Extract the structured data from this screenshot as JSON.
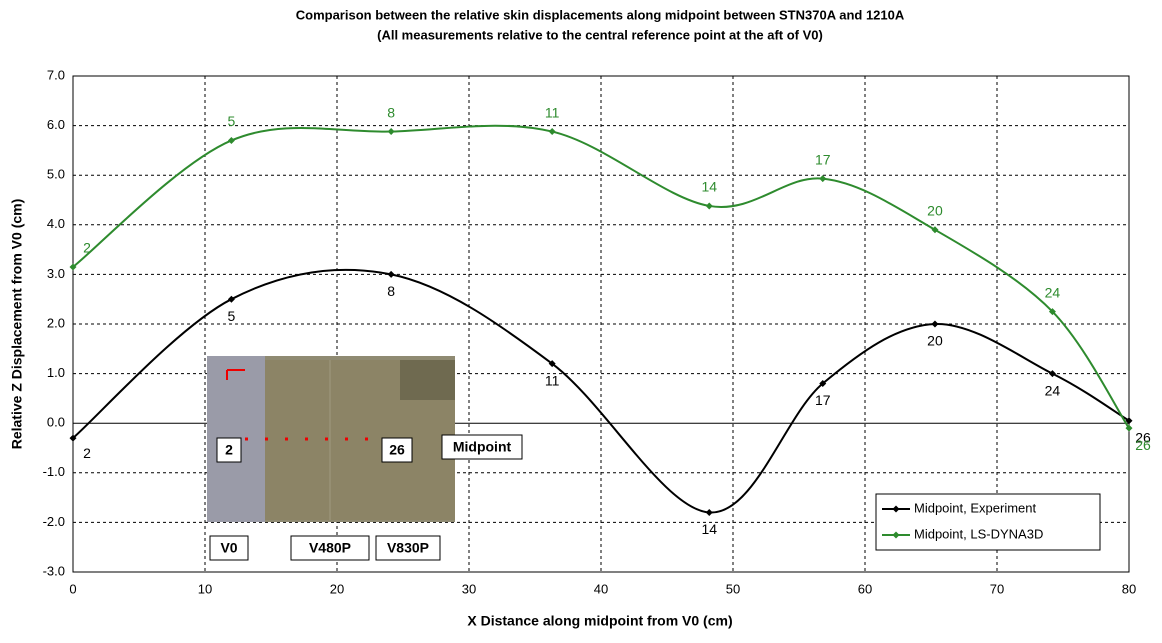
{
  "chart_data": {
    "type": "line",
    "title": "Comparison between the relative skin displacements along midpoint between STN370A and 1210A",
    "subtitle": "(All measurements relative to the central reference point at the aft of V0)",
    "x_label": "X Distance along midpoint from V0 (cm)",
    "y_label": "Relative Z Displacement from V0 (cm)",
    "xlim": [
      0,
      80
    ],
    "ylim": [
      -3,
      7
    ],
    "xticks": [
      0,
      10,
      20,
      30,
      40,
      50,
      60,
      70,
      80
    ],
    "yticks": [
      {
        "value": -3,
        "label": "-3.0"
      },
      {
        "value": -2,
        "label": "-2.0"
      },
      {
        "value": -1,
        "label": "-1.0"
      },
      {
        "value": 0,
        "label": "0.0"
      },
      {
        "value": 1,
        "label": "1.0"
      },
      {
        "value": 2,
        "label": "2.0"
      },
      {
        "value": 3,
        "label": "3.0"
      },
      {
        "value": 4,
        "label": "4.0"
      },
      {
        "value": 5,
        "label": "5.0"
      },
      {
        "value": 6,
        "label": "6.0"
      },
      {
        "value": 7,
        "label": "7.0"
      }
    ],
    "grid": true,
    "smooth": true,
    "legend": "lower right",
    "series": [
      {
        "name": "Midpoint, Experiment",
        "color": "#000000",
        "x": [
          0,
          12,
          24.1,
          36.3,
          48.2,
          56.8,
          65.3,
          74.2,
          80
        ],
        "values": [
          -0.3,
          2.5,
          3.0,
          1.2,
          -1.8,
          0.8,
          2.0,
          1.0,
          0.05
        ],
        "labels": [
          "2",
          "5",
          "8",
          "11",
          "14",
          "17",
          "20",
          "24",
          "26"
        ]
      },
      {
        "name": "Midpoint, LS-DYNA3D",
        "color": "#2e8b2e",
        "x": [
          0,
          12,
          24.1,
          36.3,
          48.2,
          56.8,
          65.3,
          74.2,
          80
        ],
        "values": [
          3.15,
          5.7,
          5.88,
          5.88,
          4.38,
          4.93,
          3.9,
          2.25,
          -0.1
        ],
        "labels": [
          "2",
          "5",
          "8",
          "11",
          "14",
          "17",
          "20",
          "24",
          "26"
        ]
      }
    ],
    "annotations": [
      "2",
      "26",
      "Midpoint",
      "V0",
      "V480P",
      "V830P"
    ]
  }
}
